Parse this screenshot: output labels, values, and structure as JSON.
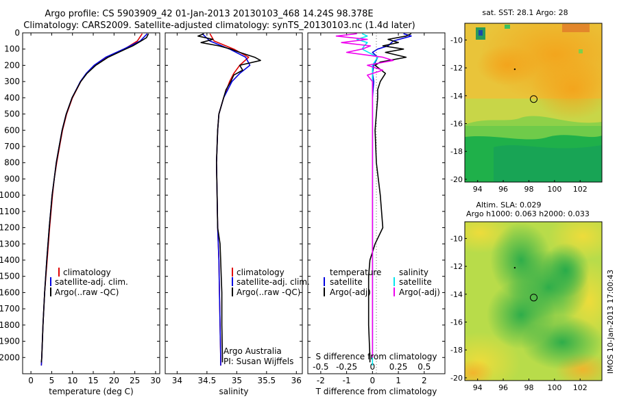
{
  "title": {
    "line1": "Argo profile: CS 5903909_42 01-Jan-2013 20130103_468 14.24S 98.378E",
    "line2": "Climatology: CARS2009. Satellite-adjusted climatology: synTS_20130103.nc (1.4d later)"
  },
  "colors": {
    "climatology": "#e00000",
    "satellite": "#0000e0",
    "argo": "#000000",
    "temp_sat_diff": "#00e5ee",
    "sal_argo_diff": "#ee00ee"
  },
  "chart_data": [
    {
      "type": "line",
      "name": "temperature-profile",
      "xlabel": "temperature (deg C)",
      "ylabel": "",
      "xlim": [
        -2,
        31
      ],
      "ylim": [
        2100,
        0
      ],
      "xticks": [
        "0",
        "5",
        "10",
        "15",
        "20",
        "25",
        "30"
      ],
      "xtick_values": [
        0,
        5,
        10,
        15,
        20,
        25,
        30
      ],
      "yticks": [
        "0",
        "100",
        "200",
        "300",
        "400",
        "500",
        "600",
        "700",
        "800",
        "900",
        "1000",
        "1100",
        "1200",
        "1300",
        "1400",
        "1500",
        "1600",
        "1700",
        "1800",
        "1900",
        "2000"
      ],
      "ytick_values": [
        0,
        100,
        200,
        300,
        400,
        500,
        600,
        700,
        800,
        900,
        1000,
        1100,
        1200,
        1300,
        1400,
        1500,
        1600,
        1700,
        1800,
        1900,
        2000
      ],
      "legend": [
        "climatology",
        "satellite-adj. clim.",
        "Argo(..raw -QC)"
      ],
      "series": [
        {
          "name": "climatology",
          "depth": [
            5,
            50,
            100,
            150,
            200,
            250,
            300,
            400,
            500,
            600,
            700,
            800,
            900,
            1000,
            1200,
            1400,
            1600,
            1800,
            2000,
            2050
          ],
          "values": [
            26.8,
            25.6,
            22.5,
            18.5,
            15.5,
            13.4,
            12.0,
            10.0,
            8.6,
            7.6,
            6.9,
            6.2,
            5.6,
            5.2,
            4.5,
            3.9,
            3.3,
            2.9,
            2.6,
            2.5
          ]
        },
        {
          "name": "satellite-adj. clim.",
          "depth": [
            5,
            50,
            100,
            150,
            200,
            250,
            300,
            400,
            500,
            600,
            700,
            800,
            900,
            1000,
            1200,
            1400,
            1600,
            1800,
            2000,
            2050
          ],
          "values": [
            28.0,
            26.3,
            22.3,
            18.0,
            15.2,
            13.3,
            11.9,
            9.9,
            8.5,
            7.5,
            6.8,
            6.1,
            5.6,
            5.1,
            4.4,
            3.8,
            3.3,
            2.9,
            2.6,
            2.5
          ]
        },
        {
          "name": "Argo(..raw -QC)",
          "depth": [
            5,
            30,
            50,
            80,
            100,
            150,
            200,
            250,
            300,
            400,
            500,
            600,
            700,
            800,
            900,
            1000,
            1200,
            1400,
            1600,
            1800,
            2000,
            2030
          ],
          "values": [
            28.3,
            27.8,
            26.5,
            24.5,
            22.8,
            18.6,
            15.6,
            13.5,
            12.0,
            9.9,
            8.5,
            7.5,
            6.8,
            6.1,
            5.6,
            5.1,
            4.4,
            3.8,
            3.3,
            2.9,
            2.6,
            2.5
          ]
        }
      ]
    },
    {
      "type": "line",
      "name": "salinity-profile",
      "xlabel": "salinity",
      "xlim": [
        33.8,
        36.1
      ],
      "ylim": [
        2100,
        0
      ],
      "xticks": [
        "34",
        "34.5",
        "35",
        "35.5",
        "36"
      ],
      "xtick_values": [
        34,
        34.5,
        35,
        35.5,
        36
      ],
      "legend": [
        "climatology",
        "satellite-adj. clim.",
        "Argo(..raw -QC)"
      ],
      "annotations": [
        "Argo Australia",
        "PI: Susan Wijffels"
      ],
      "series": [
        {
          "name": "climatology",
          "depth": [
            5,
            50,
            100,
            150,
            200,
            250,
            300,
            400,
            500,
            600,
            800,
            1000,
            1200,
            1400,
            1600,
            1800,
            2000,
            2050
          ],
          "values": [
            34.55,
            34.62,
            34.95,
            35.2,
            35.05,
            34.95,
            34.88,
            34.78,
            34.7,
            34.68,
            34.66,
            34.67,
            34.68,
            34.7,
            34.71,
            34.72,
            34.73,
            34.73
          ]
        },
        {
          "name": "satellite-adj. clim.",
          "depth": [
            5,
            50,
            100,
            150,
            200,
            250,
            300,
            400,
            500,
            600,
            800,
            1000,
            1200,
            1400,
            1600,
            1800,
            2000,
            2050
          ],
          "values": [
            34.42,
            34.55,
            34.88,
            35.15,
            35.22,
            35.05,
            34.92,
            34.78,
            34.7,
            34.68,
            34.66,
            34.67,
            34.68,
            34.7,
            34.71,
            34.72,
            34.73,
            34.73
          ]
        },
        {
          "name": "Argo(..raw -QC)",
          "depth": [
            5,
            20,
            40,
            60,
            80,
            100,
            120,
            150,
            170,
            200,
            230,
            260,
            300,
            350,
            400,
            500,
            600,
            800,
            1000,
            1200,
            1300,
            1400,
            1500,
            1600,
            1800,
            2000,
            2030
          ],
          "values": [
            34.45,
            34.35,
            34.6,
            34.4,
            34.7,
            34.9,
            35.05,
            35.3,
            35.4,
            35.05,
            35.1,
            34.95,
            34.9,
            34.82,
            34.78,
            34.7,
            34.68,
            34.66,
            34.67,
            34.68,
            34.72,
            34.73,
            34.74,
            34.75,
            34.75,
            34.76,
            34.76
          ]
        }
      ]
    },
    {
      "type": "line",
      "name": "difference-profile",
      "xlabel": "T difference from climatology",
      "xlabel2": "S difference from climatology",
      "xlim": [
        -2.5,
        2.8
      ],
      "ylim": [
        2100,
        0
      ],
      "xticks": [
        "-2",
        "-1",
        "0",
        "1",
        "2"
      ],
      "xtick_values": [
        -2,
        -1,
        0,
        1,
        2
      ],
      "xticks2": [
        "-0.5",
        "-0.25",
        "0",
        "0.25",
        "0.5"
      ],
      "xtick2_values": [
        -0.5,
        -0.25,
        0,
        0.25,
        0.5
      ],
      "legend_temperature": {
        "heading": "temperature",
        "items": [
          "satellite",
          "Argo(-adj)"
        ]
      },
      "legend_salinity": {
        "heading": "salinity",
        "items": [
          "satellite",
          "Argo(-adj)"
        ]
      },
      "series": [
        {
          "name": "temperature satellite",
          "depth": [
            5,
            20,
            50,
            80,
            100,
            120,
            150,
            200,
            250,
            300,
            400,
            600,
            800,
            1000,
            1400,
            2000
          ],
          "values": [
            1.2,
            1.5,
            0.8,
            0.6,
            0.2,
            0.0,
            0.2,
            0.05,
            0.0,
            0.05,
            0.0,
            0.0,
            0.0,
            0.0,
            0.0,
            0.0
          ]
        },
        {
          "name": "temperature Argo(-adj)",
          "depth": [
            5,
            20,
            40,
            60,
            80,
            100,
            120,
            150,
            180,
            200,
            250,
            300,
            350,
            400,
            600,
            800,
            1000,
            1200,
            1300,
            1400,
            1500,
            1600,
            1800,
            2000,
            2030
          ],
          "values": [
            1.5,
            1.3,
            0.6,
            1.0,
            0.4,
            1.2,
            0.5,
            1.3,
            0.3,
            0.1,
            0.5,
            0.3,
            0.2,
            0.2,
            0.1,
            0.15,
            0.3,
            0.4,
            0.1,
            -0.1,
            -0.15,
            -0.15,
            -0.15,
            -0.1,
            -0.1
          ]
        },
        {
          "name": "salinity satellite",
          "depth": [
            5,
            20,
            40,
            60,
            80,
            100,
            150,
            200,
            300,
            400,
            600,
            800,
            1000,
            1200,
            1400,
            1600,
            1800,
            2000,
            2050
          ],
          "values": [
            -0.1,
            -0.05,
            -0.15,
            -0.05,
            -0.08,
            -0.1,
            0.05,
            0.0,
            0.0,
            0.0,
            0.0,
            0.0,
            0.0,
            0.0,
            0.0,
            0.0,
            0.0,
            0.0,
            0.0
          ]
        },
        {
          "name": "salinity Argo(-adj)",
          "depth": [
            5,
            20,
            40,
            60,
            80,
            100,
            120,
            150,
            170,
            200,
            230,
            260,
            300,
            400,
            600,
            800,
            1000,
            1200,
            1400,
            1600,
            1800,
            2000
          ],
          "values": [
            -0.15,
            -0.35,
            -0.05,
            -0.3,
            -0.02,
            -0.1,
            -0.25,
            0.1,
            0.2,
            -0.05,
            0.1,
            -0.05,
            0.0,
            0.0,
            0.0,
            0.0,
            0.0,
            0.0,
            0.0,
            0.0,
            0.0,
            0.0
          ]
        }
      ]
    },
    {
      "type": "heatmap",
      "name": "sst-map",
      "title": "sat. SST: 28.1 Argo: 28",
      "xticks": [
        "94",
        "96",
        "98",
        "100",
        "102"
      ],
      "xtick_values": [
        94,
        96,
        98,
        100,
        102
      ],
      "yticks": [
        "-10",
        "-12",
        "-14",
        "-16",
        "-18",
        "-20"
      ],
      "ytick_values": [
        -10,
        -12,
        -14,
        -16,
        -18,
        -20
      ],
      "xlim": [
        93,
        103.7
      ],
      "ylim": [
        -20.2,
        -8.8
      ],
      "marker": {
        "lon": 98.378,
        "lat": -14.24
      },
      "point": {
        "lon": 96.9,
        "lat": -12.1
      }
    },
    {
      "type": "heatmap",
      "name": "sla-map",
      "title": "Altim. SLA: 0.029",
      "subtitle": "Argo h1000: 0.063 h2000: 0.033",
      "xticks": [
        "94",
        "96",
        "98",
        "100",
        "102"
      ],
      "xtick_values": [
        94,
        96,
        98,
        100,
        102
      ],
      "yticks": [
        "-10",
        "-12",
        "-14",
        "-16",
        "-18",
        "-20"
      ],
      "ytick_values": [
        -10,
        -12,
        -14,
        -16,
        -18,
        -20
      ],
      "xlim": [
        93,
        103.7
      ],
      "ylim": [
        -20.2,
        -8.8
      ],
      "marker": {
        "lon": 98.378,
        "lat": -14.24
      },
      "point": {
        "lon": 96.9,
        "lat": -12.1
      }
    }
  ],
  "watermark": "IMOS 10-Jan-2013 17:00:43"
}
